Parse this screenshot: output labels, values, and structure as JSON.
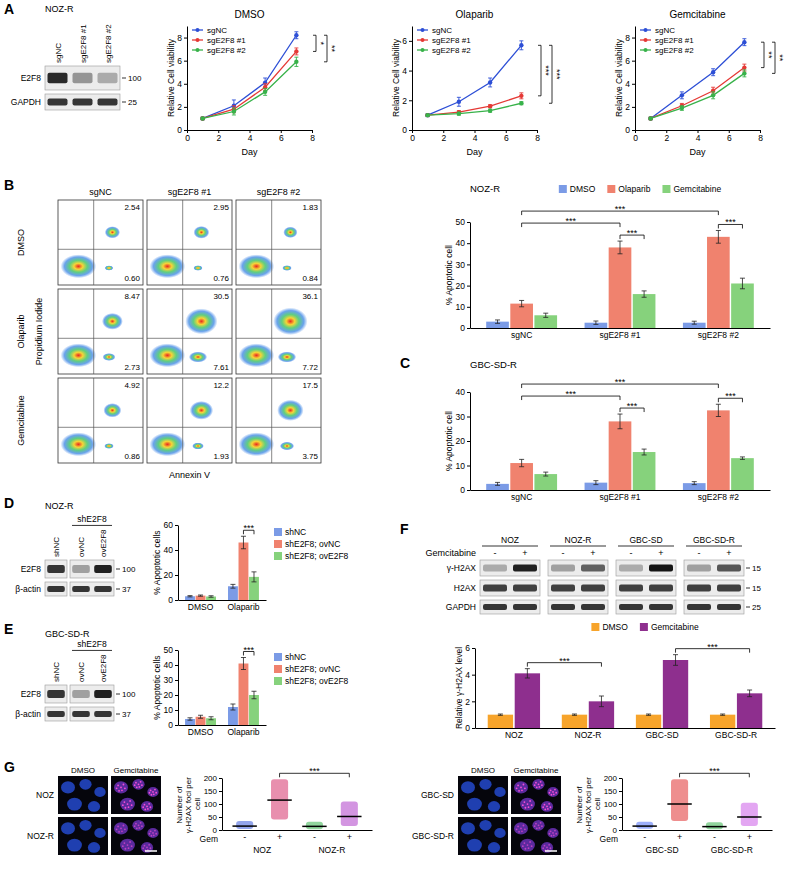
{
  "panel_letters": [
    "A",
    "B",
    "C",
    "D",
    "E",
    "F",
    "G"
  ],
  "chart_data": [
    {
      "type": "line",
      "title": "DMSO",
      "x_label": "Day",
      "y_label": "Relative Cell viability",
      "x": [
        1,
        3,
        5,
        7
      ],
      "xlim": [
        0,
        8
      ],
      "xticks": [
        0,
        2,
        4,
        6,
        8
      ],
      "ylim": [
        0,
        9
      ],
      "yticks": [
        0,
        2,
        4,
        6,
        8
      ],
      "legend": "upper left",
      "marker": "circle",
      "series": [
        {
          "name": "sgNC",
          "color": "#2d4fd6",
          "values": [
            1.0,
            2.1,
            4.1,
            8.2
          ],
          "errors": [
            0.1,
            0.5,
            0.4,
            0.3
          ]
        },
        {
          "name": "sgE2F8 #1",
          "color": "#e53935",
          "values": [
            1.0,
            1.8,
            3.7,
            6.8
          ],
          "errors": [
            0.1,
            0.3,
            0.3,
            0.3
          ]
        },
        {
          "name": "sgE2F8 #2",
          "color": "#38b24a",
          "values": [
            1.0,
            1.6,
            3.3,
            5.9
          ],
          "errors": [
            0.1,
            0.3,
            0.3,
            0.4
          ]
        }
      ],
      "annotations": [
        {
          "text": "*",
          "from": "sgNC",
          "to": "sgE2F8 #1"
        },
        {
          "text": "**",
          "from": "sgNC",
          "to": "sgE2F8 #2"
        }
      ]
    },
    {
      "type": "line",
      "title": "Olaparib",
      "x_label": "Day",
      "y_label": "Relative Cell viability",
      "x": [
        1,
        3,
        5,
        7
      ],
      "xlim": [
        0,
        8
      ],
      "xticks": [
        0,
        2,
        4,
        6,
        8
      ],
      "ylim": [
        0,
        7
      ],
      "yticks": [
        0,
        2,
        4,
        6
      ],
      "legend": "upper left",
      "marker": "circle",
      "series": [
        {
          "name": "sgNC",
          "color": "#2d4fd6",
          "values": [
            1.0,
            1.9,
            3.2,
            5.7
          ],
          "errors": [
            0.1,
            0.3,
            0.3,
            0.3
          ]
        },
        {
          "name": "sgE2F8 #1",
          "color": "#e53935",
          "values": [
            1.0,
            1.2,
            1.6,
            2.3
          ],
          "errors": [
            0.05,
            0.1,
            0.1,
            0.2
          ]
        },
        {
          "name": "sgE2F8 #2",
          "color": "#38b24a",
          "values": [
            1.0,
            1.1,
            1.3,
            1.8
          ],
          "errors": [
            0.05,
            0.1,
            0.1,
            0.1
          ]
        }
      ],
      "annotations": [
        {
          "text": "***",
          "from": "sgNC",
          "to": "sgE2F8 #1"
        },
        {
          "text": "***",
          "from": "sgNC",
          "to": "sgE2F8 #2"
        }
      ]
    },
    {
      "type": "line",
      "title": "Gemcitabine",
      "x_label": "Day",
      "y_label": "Relative Cell viability",
      "x": [
        1,
        3,
        5,
        7
      ],
      "xlim": [
        0,
        8
      ],
      "xticks": [
        0,
        2,
        4,
        6,
        8
      ],
      "ylim": [
        0,
        9
      ],
      "yticks": [
        0,
        2,
        4,
        6,
        8
      ],
      "legend": "upper left",
      "marker": "circle",
      "series": [
        {
          "name": "sgNC",
          "color": "#2d4fd6",
          "values": [
            1.0,
            3.0,
            5.0,
            7.6
          ],
          "errors": [
            0.1,
            0.3,
            0.3,
            0.3
          ]
        },
        {
          "name": "sgE2F8 #1",
          "color": "#e53935",
          "values": [
            1.0,
            2.1,
            3.4,
            5.4
          ],
          "errors": [
            0.1,
            0.2,
            0.3,
            0.3
          ]
        },
        {
          "name": "sgE2F8 #2",
          "color": "#38b24a",
          "values": [
            1.0,
            1.9,
            3.0,
            4.9
          ],
          "errors": [
            0.1,
            0.2,
            0.3,
            0.3
          ]
        }
      ],
      "annotations": [
        {
          "text": "**",
          "from": "sgNC",
          "to": "sgE2F8 #1"
        },
        {
          "text": "**",
          "from": "sgNC",
          "to": "sgE2F8 #2"
        }
      ]
    },
    {
      "type": "bar",
      "title": "NOZ-R",
      "y_label": "% Apoptotic cell",
      "categories": [
        "sgNC",
        "sgE2F8 #1",
        "sgE2F8 #2"
      ],
      "ylim": [
        0,
        50
      ],
      "yticks": [
        0,
        10,
        20,
        30,
        40,
        50
      ],
      "legend": "top",
      "series": [
        {
          "name": "DMSO",
          "color": "#7b9be6",
          "values": [
            3,
            2.5,
            2.5
          ],
          "errors": [
            0.8,
            0.8,
            0.7
          ]
        },
        {
          "name": "Olaparib",
          "color": "#f0826e",
          "values": [
            11.5,
            38,
            43
          ],
          "errors": [
            1.5,
            3,
            3
          ]
        },
        {
          "name": "Gemcitabine",
          "color": "#86d27c",
          "values": [
            6,
            16,
            21
          ],
          "errors": [
            1,
            1.5,
            2.5
          ]
        }
      ],
      "annotations": [
        {
          "text": "***",
          "from": {
            "category": "sgE2F8 #1",
            "series": "Olaparib"
          },
          "to": {
            "category": "sgE2F8 #1",
            "series": "Gemcitabine"
          }
        },
        {
          "text": "***",
          "from": {
            "category": "sgE2F8 #2",
            "series": "Olaparib"
          },
          "to": {
            "category": "sgE2F8 #2",
            "series": "Gemcitabine"
          }
        },
        {
          "text": "***",
          "from": {
            "category": "sgNC",
            "series": "Olaparib"
          },
          "to": {
            "category": "sgE2F8 #1",
            "series": "Olaparib"
          }
        },
        {
          "text": "***",
          "from": {
            "category": "sgNC",
            "series": "Olaparib"
          },
          "to": {
            "category": "sgE2F8 #2",
            "series": "Olaparib"
          }
        }
      ]
    },
    {
      "type": "bar",
      "title": "GBC-SD-R",
      "y_label": "% Apoptotic cell",
      "categories": [
        "sgNC",
        "sgE2F8 #1",
        "sgE2F8 #2"
      ],
      "ylim": [
        0,
        40
      ],
      "yticks": [
        0,
        10,
        20,
        30,
        40
      ],
      "series": [
        {
          "name": "DMSO",
          "color": "#7b9be6",
          "values": [
            2.5,
            3,
            2.8
          ],
          "errors": [
            0.6,
            0.8,
            0.6
          ]
        },
        {
          "name": "Olaparib",
          "color": "#f0826e",
          "values": [
            11,
            28,
            32.5
          ],
          "errors": [
            1.5,
            3,
            2.5
          ]
        },
        {
          "name": "Gemcitabine",
          "color": "#86d27c",
          "values": [
            6.5,
            15.5,
            13
          ],
          "errors": [
            0.8,
            1.2,
            0.5
          ]
        }
      ],
      "annotations": [
        {
          "text": "***",
          "from": {
            "category": "sgE2F8 #1",
            "series": "Olaparib"
          },
          "to": {
            "category": "sgE2F8 #1",
            "series": "Gemcitabine"
          }
        },
        {
          "text": "***",
          "from": {
            "category": "sgE2F8 #2",
            "series": "Olaparib"
          },
          "to": {
            "category": "sgE2F8 #2",
            "series": "Gemcitabine"
          }
        },
        {
          "text": "***",
          "from": {
            "category": "sgNC",
            "series": "Olaparib"
          },
          "to": {
            "category": "sgE2F8 #1",
            "series": "Olaparib"
          }
        },
        {
          "text": "***",
          "from": {
            "category": "sgNC",
            "series": "Olaparib"
          },
          "to": {
            "category": "sgE2F8 #2",
            "series": "Olaparib"
          }
        }
      ]
    },
    {
      "type": "bar",
      "y_label": "% Apoptotic cells",
      "categories": [
        "DMSO",
        "Olaparib"
      ],
      "ylim": [
        0,
        60
      ],
      "yticks": [
        0,
        20,
        40,
        60
      ],
      "legend": "right",
      "series": [
        {
          "name": "shNC",
          "color": "#7b9be6",
          "values": [
            3,
            11
          ],
          "errors": [
            0.5,
            1.5
          ]
        },
        {
          "name": "shE2F8; ovNC",
          "color": "#f0826e",
          "values": [
            3.5,
            46
          ],
          "errors": [
            0.5,
            5
          ]
        },
        {
          "name": "shE2F8; ovE2F8",
          "color": "#86d27c",
          "values": [
            2.8,
            18.5
          ],
          "errors": [
            0.6,
            4
          ]
        }
      ],
      "annotations": [
        {
          "text": "***",
          "from": {
            "category": "Olaparib",
            "series": "shE2F8; ovNC"
          },
          "to": {
            "category": "Olaparib",
            "series": "shE2F8; ovE2F8"
          }
        }
      ]
    },
    {
      "type": "bar",
      "y_label": "% Apoptotic cells",
      "categories": [
        "DMSO",
        "Olaparib"
      ],
      "ylim": [
        0,
        50
      ],
      "yticks": [
        0,
        10,
        20,
        30,
        40,
        50
      ],
      "legend": "right",
      "series": [
        {
          "name": "shNC",
          "color": "#7b9be6",
          "values": [
            4,
            12
          ],
          "errors": [
            0.8,
            2
          ]
        },
        {
          "name": "shE2F8; ovNC",
          "color": "#f0826e",
          "values": [
            5.5,
            41
          ],
          "errors": [
            1,
            4
          ]
        },
        {
          "name": "shE2F8; ovE2F8",
          "color": "#86d27c",
          "values": [
            4.5,
            20
          ],
          "errors": [
            1,
            2.5
          ]
        }
      ],
      "annotations": [
        {
          "text": "***",
          "from": {
            "category": "Olaparib",
            "series": "shE2F8; ovNC"
          },
          "to": {
            "category": "Olaparib",
            "series": "shE2F8; ovE2F8"
          }
        }
      ]
    },
    {
      "type": "bar",
      "y_label": "Relative γ-H2AX level",
      "categories": [
        "NOZ",
        "NOZ-R",
        "GBC-SD",
        "GBC-SD-R"
      ],
      "ylim": [
        0,
        6
      ],
      "yticks": [
        0,
        2,
        4,
        6
      ],
      "legend": "top",
      "series": [
        {
          "name": "DMSO",
          "color": "#f7a42b",
          "values": [
            1,
            1,
            1,
            1
          ],
          "errors": [
            0.05,
            0.05,
            0.05,
            0.05
          ]
        },
        {
          "name": "Gemcitabine",
          "color": "#8e2f8e",
          "values": [
            4.1,
            2.0,
            5.1,
            2.6
          ],
          "errors": [
            0.35,
            0.4,
            0.4,
            0.25
          ]
        }
      ],
      "annotations": [
        {
          "text": "***",
          "from": {
            "category": "NOZ",
            "series": "Gemcitabine"
          },
          "to": {
            "category": "NOZ-R",
            "series": "Gemcitabine"
          }
        },
        {
          "text": "***",
          "from": {
            "category": "GBC-SD",
            "series": "Gemcitabine"
          },
          "to": {
            "category": "GBC-SD-R",
            "series": "Gemcitabine"
          }
        }
      ]
    },
    {
      "type": "strip",
      "y_label": "Number of γ-H2AX foci per cell",
      "x_label": "Gem",
      "categories": [
        "-",
        "+",
        "-",
        "+"
      ],
      "group_labels": [
        "NOZ",
        "NOZ-R"
      ],
      "ylim": [
        0,
        200
      ],
      "yticks": [
        0,
        50,
        100,
        150,
        200
      ],
      "colors": [
        "#3b5bdb",
        "#d6336c",
        "#37b24d",
        "#ae3ec9"
      ],
      "mean": [
        15,
        115,
        14,
        52
      ],
      "min": [
        4,
        40,
        3,
        15
      ],
      "max": [
        35,
        195,
        32,
        110
      ],
      "annotations": [
        {
          "text": "***",
          "from": {
            "group": "NOZ",
            "category": "+"
          },
          "to": {
            "group": "NOZ-R",
            "category": "+"
          }
        }
      ]
    },
    {
      "type": "strip",
      "y_label": "Number of γ-H2AX foci per cell",
      "x_label": "Gem",
      "categories": [
        "-",
        "+",
        "-",
        "+"
      ],
      "group_labels": [
        "GBC-SD",
        "GBC-SD-R"
      ],
      "ylim": [
        0,
        200
      ],
      "yticks": [
        0,
        50,
        100,
        150,
        200
      ],
      "colors": [
        "#4c6ef5",
        "#e03131",
        "#37b24d",
        "#cc5de8"
      ],
      "mean": [
        15,
        100,
        13,
        50
      ],
      "min": [
        5,
        35,
        3,
        15
      ],
      "max": [
        32,
        195,
        30,
        105
      ],
      "annotations": [
        {
          "text": "***",
          "from": {
            "group": "GBC-SD",
            "category": "+"
          },
          "to": {
            "group": "GBC-SD-R",
            "category": "+"
          }
        }
      ]
    }
  ],
  "blots": [
    {
      "title": "NOZ-R",
      "lane_groups": [
        {
          "lanes": [
            "sgNC",
            "sgE2F8 #1",
            "sgE2F8 #2"
          ]
        }
      ],
      "rows": [
        {
          "name": "E2F8",
          "size": 100,
          "levels": [
            0.9,
            0.4,
            0.3
          ]
        },
        {
          "name": "GAPDH",
          "size": 25,
          "levels": [
            0.85,
            0.85,
            0.85
          ]
        }
      ]
    },
    {
      "title": "NOZ-R",
      "lane_groups": [
        {
          "lanes": [
            "shNC"
          ]
        },
        {
          "label": "shE2F8",
          "lanes": [
            "ovNC",
            "ovE2F8"
          ]
        }
      ],
      "rows": [
        {
          "name": "E2F8",
          "size": 100,
          "levels": [
            0.85,
            0.35,
            0.95
          ]
        },
        {
          "name": "β-actin",
          "size": 37,
          "levels": [
            0.85,
            0.85,
            0.85
          ]
        }
      ]
    },
    {
      "title": "GBC-SD-R",
      "lane_groups": [
        {
          "lanes": [
            "shNC"
          ]
        },
        {
          "label": "shE2F8",
          "lanes": [
            "ovNC",
            "ovE2F8"
          ]
        }
      ],
      "rows": [
        {
          "name": "E2F8",
          "size": 100,
          "levels": [
            0.85,
            0.35,
            0.95
          ]
        },
        {
          "name": "β-actin",
          "size": 37,
          "levels": [
            0.85,
            0.85,
            0.85
          ]
        }
      ]
    },
    {
      "row_label": "Gemcitabine",
      "lane_groups": [
        {
          "label": "NOZ",
          "lanes": [
            "-",
            "+"
          ]
        },
        {
          "label": "NOZ-R",
          "lanes": [
            "-",
            "+"
          ]
        },
        {
          "label": "GBC-SD",
          "lanes": [
            "-",
            "+"
          ]
        },
        {
          "label": "GBC-SD-R",
          "lanes": [
            "-",
            "+"
          ]
        }
      ],
      "rows": [
        {
          "name": "γ-H2AX",
          "size": 15,
          "levels": [
            0.3,
            0.95,
            0.35,
            0.65,
            0.3,
            1,
            0.35,
            0.7
          ]
        },
        {
          "name": "H2AX",
          "size": 15,
          "levels": [
            0.8,
            0.8,
            0.8,
            0.8,
            0.8,
            0.8,
            0.8,
            0.8
          ]
        },
        {
          "name": "GAPDH",
          "size": 25,
          "levels": [
            0.85,
            0.85,
            0.85,
            0.85,
            0.85,
            0.85,
            0.85,
            0.85
          ]
        }
      ]
    }
  ],
  "flow": {
    "columns": [
      "sgNC",
      "sgE2F8 #1",
      "sgE2F8 #2"
    ],
    "rows": [
      "DMSO",
      "Olaparib",
      "Gemcitabine"
    ],
    "x_label": "Annexin V",
    "y_label": "Propidium Iodide",
    "upper_right": [
      [
        "2.54",
        "2.95",
        "1.83"
      ],
      [
        "8.47",
        "30.5",
        "36.1"
      ],
      [
        "4.92",
        "12.2",
        "17.5"
      ]
    ],
    "lower_right": [
      [
        "0.60",
        "0.76",
        "0.84"
      ],
      [
        "2.73",
        "7.61",
        "7.72"
      ],
      [
        "0.86",
        "1.93",
        "3.75"
      ]
    ]
  },
  "microscopy": [
    {
      "columns": [
        "DMSO",
        "Gemcitabine"
      ],
      "rows": [
        "NOZ",
        "NOZ-R"
      ]
    },
    {
      "columns": [
        "DMSO",
        "Gemcitabine"
      ],
      "rows": [
        "GBC-SD",
        "GBC-SD-R"
      ]
    }
  ]
}
